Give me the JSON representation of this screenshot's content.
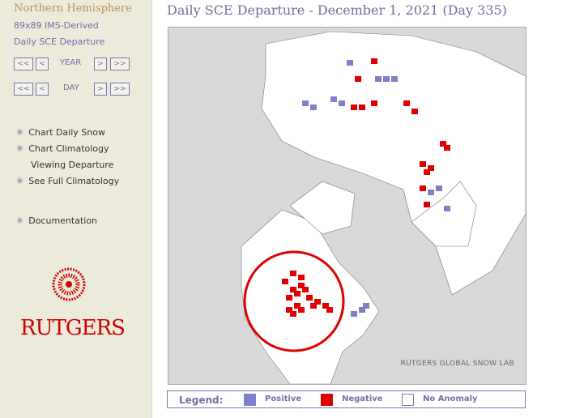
{
  "sidebar": {
    "region": "Northern Hemisphere",
    "product": "89x89 IMS-Derived",
    "view": "Daily SCE Departure",
    "year_label": "YEAR",
    "day_label": "DAY",
    "first": "<<",
    "prev": "<",
    "next": ">",
    "last": ">>",
    "menu": [
      "Chart Daily Snow",
      "Chart Climatology",
      "Viewing Departure",
      "See Full Climatology",
      "Documentation"
    ],
    "logo_text": "RUTGERS"
  },
  "title": "Daily SCE Departure - December 1, 2021 (Day 335)",
  "map": {
    "credit": "RUTGERS GLOBAL SNOW LAB",
    "annotation": "red circle around western North America"
  },
  "legend": {
    "label": "Legend:",
    "items": [
      {
        "label": "Positive",
        "color": "#8080c8"
      },
      {
        "label": "Negative",
        "color": "#e00000"
      },
      {
        "label": "No Anomaly",
        "color": "#ffffff"
      }
    ]
  }
}
